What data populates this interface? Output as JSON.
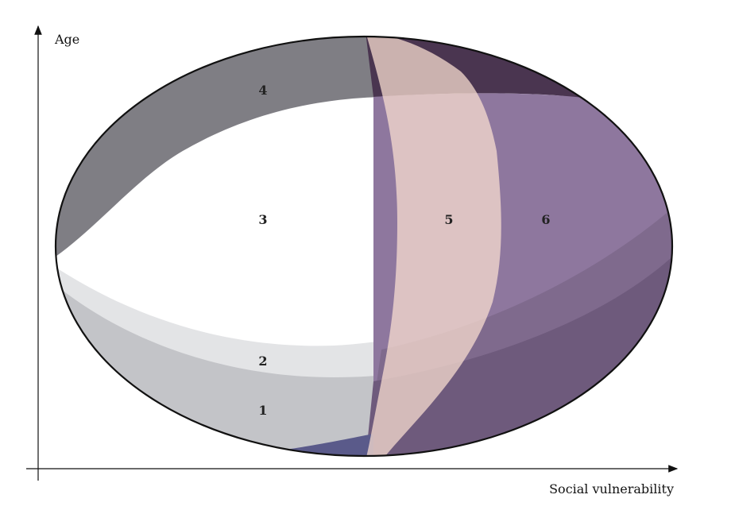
{
  "axes": {
    "y_label": "Age",
    "x_label": "Social vulnerability"
  },
  "regions": [
    {
      "id": "1",
      "label": "1",
      "color": "#c3c4c8"
    },
    {
      "id": "2",
      "label": "2",
      "color": "#e3e4e6"
    },
    {
      "id": "3",
      "label": "3",
      "color": "#ffffff"
    },
    {
      "id": "4",
      "label": "4",
      "color": "#7f7e84"
    },
    {
      "id": "5",
      "label": "5",
      "color": "#f7dccf"
    },
    {
      "id": "6",
      "label": "6",
      "color": "#8e779e"
    }
  ],
  "colors": {
    "ellipse_outline": "#111111",
    "dark_purple": "#4a3550",
    "lower_purple": "#6e5a7c",
    "mid_purple": "#7f6a8d",
    "axis": "#111111"
  }
}
